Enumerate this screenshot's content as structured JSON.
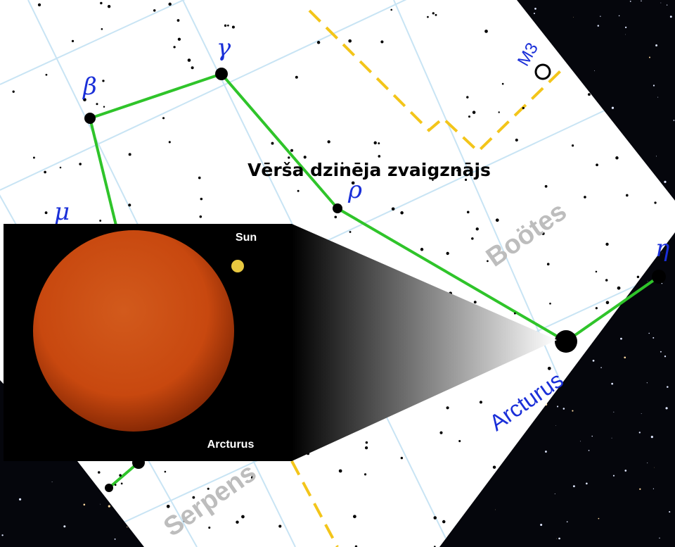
{
  "title": "Vērša dzinēja zvaigznājs",
  "map": {
    "constellation": "Boötes",
    "neighbor": "Serpens",
    "cluster": "M3",
    "star_name": "Arcturus",
    "star_labels": [
      "β",
      "γ",
      "ρ",
      "η",
      "μ"
    ]
  },
  "inset": {
    "small_star": "Sun",
    "big_star": "Arcturus"
  }
}
